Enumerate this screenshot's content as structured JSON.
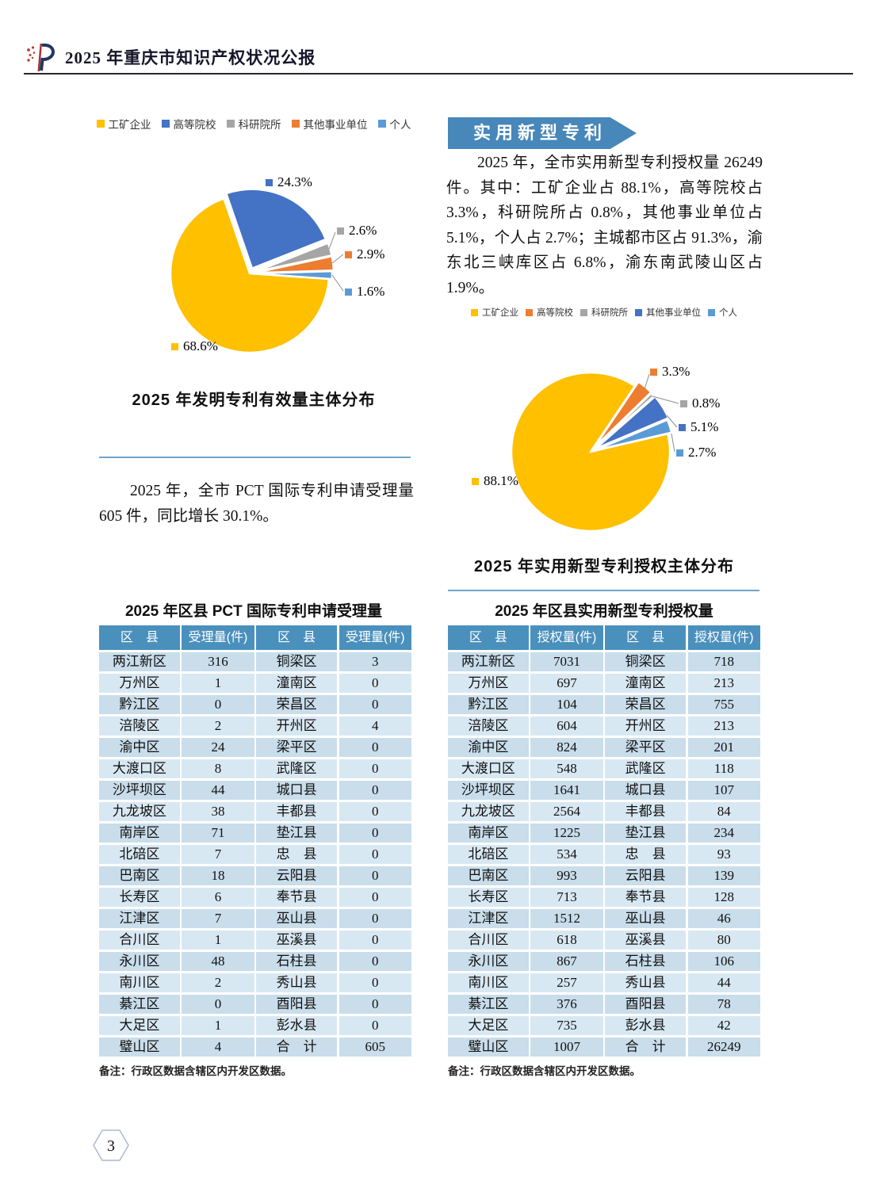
{
  "header": {
    "title": "2025 年重庆市知识产权状况公报"
  },
  "section_banner": "实用新型专利",
  "paragraphs": {
    "pct": "2025 年，全市 PCT 国际专利申请受理量 605 件，同比增长 30.1%。",
    "utility": "2025 年，全市实用新型专利授权量 26249 件。其中：工矿企业占 88.1%，高等院校占 3.3%，科研院所占 0.8%，其他事业单位占 5.1%，个人占 2.7%；主城都市区占 91.3%，渝东北三峡库区占 6.8%，渝东南武陵山区占 1.9%。"
  },
  "chart_data": [
    {
      "type": "pie",
      "title": "2025 年发明专利有效量主体分布",
      "values_are": "percent",
      "legend_position": "top",
      "legend": [
        {
          "name": "工矿企业",
          "color": "#FFC000"
        },
        {
          "name": "高等院校",
          "color": "#4472C4"
        },
        {
          "name": "科研院所",
          "color": "#A5A5A5"
        },
        {
          "name": "其他事业单位",
          "color": "#ED7D31"
        },
        {
          "name": "个人",
          "color": "#5B9BD5"
        }
      ],
      "slices": [
        {
          "name": "高等院校",
          "value": 24.3,
          "label": "24.3%",
          "color": "#4472C4"
        },
        {
          "name": "科研院所",
          "value": 2.6,
          "label": "2.6%",
          "color": "#A5A5A5"
        },
        {
          "name": "其他事业单位",
          "value": 2.9,
          "label": "2.9%",
          "color": "#ED7D31"
        },
        {
          "name": "个人",
          "value": 1.6,
          "label": "1.6%",
          "color": "#5B9BD5"
        },
        {
          "name": "工矿企业",
          "value": 68.6,
          "label": "68.6%",
          "color": "#FFC000"
        }
      ]
    },
    {
      "type": "pie",
      "title": "2025 年实用新型专利授权主体分布",
      "values_are": "percent",
      "legend_position": "top",
      "legend": [
        {
          "name": "工矿企业",
          "color": "#FFC000"
        },
        {
          "name": "高等院校",
          "color": "#ED7D31"
        },
        {
          "name": "科研院所",
          "color": "#A5A5A5"
        },
        {
          "name": "其他事业单位",
          "color": "#4472C4"
        },
        {
          "name": "个人",
          "color": "#5B9BD5"
        }
      ],
      "slices": [
        {
          "name": "高等院校",
          "value": 3.3,
          "label": "3.3%",
          "color": "#ED7D31"
        },
        {
          "name": "科研院所",
          "value": 0.8,
          "label": "0.8%",
          "color": "#A5A5A5"
        },
        {
          "name": "其他事业单位",
          "value": 5.1,
          "label": "5.1%",
          "color": "#4472C4"
        },
        {
          "name": "个人",
          "value": 2.7,
          "label": "2.7%",
          "color": "#5B9BD5"
        },
        {
          "name": "工矿企业",
          "value": 88.1,
          "label": "88.1%",
          "color": "#FFC000"
        }
      ]
    }
  ],
  "pct_table": {
    "title": "2025 年区县 PCT 国际专利申请受理量",
    "headers": [
      "区　县",
      "受理量(件)",
      "区　县",
      "受理量(件)"
    ],
    "rows": [
      [
        "两江新区",
        "316",
        "铜梁区",
        "3"
      ],
      [
        "万州区",
        "1",
        "潼南区",
        "0"
      ],
      [
        "黔江区",
        "0",
        "荣昌区",
        "0"
      ],
      [
        "涪陵区",
        "2",
        "开州区",
        "4"
      ],
      [
        "渝中区",
        "24",
        "梁平区",
        "0"
      ],
      [
        "大渡口区",
        "8",
        "武隆区",
        "0"
      ],
      [
        "沙坪坝区",
        "44",
        "城口县",
        "0"
      ],
      [
        "九龙坡区",
        "38",
        "丰都县",
        "0"
      ],
      [
        "南岸区",
        "71",
        "垫江县",
        "0"
      ],
      [
        "北碚区",
        "7",
        "忠　县",
        "0"
      ],
      [
        "巴南区",
        "18",
        "云阳县",
        "0"
      ],
      [
        "长寿区",
        "6",
        "奉节县",
        "0"
      ],
      [
        "江津区",
        "7",
        "巫山县",
        "0"
      ],
      [
        "合川区",
        "1",
        "巫溪县",
        "0"
      ],
      [
        "永川区",
        "48",
        "石柱县",
        "0"
      ],
      [
        "南川区",
        "2",
        "秀山县",
        "0"
      ],
      [
        "綦江区",
        "0",
        "酉阳县",
        "0"
      ],
      [
        "大足区",
        "1",
        "彭水县",
        "0"
      ],
      [
        "璧山区",
        "4",
        "合　计",
        "605"
      ]
    ],
    "note": "备注：行政区数据含辖区内开发区数据。"
  },
  "utility_table": {
    "title": "2025 年区县实用新型专利授权量",
    "headers": [
      "区　县",
      "授权量(件)",
      "区　县",
      "授权量(件)"
    ],
    "rows": [
      [
        "两江新区",
        "7031",
        "铜梁区",
        "718"
      ],
      [
        "万州区",
        "697",
        "潼南区",
        "213"
      ],
      [
        "黔江区",
        "104",
        "荣昌区",
        "755"
      ],
      [
        "涪陵区",
        "604",
        "开州区",
        "213"
      ],
      [
        "渝中区",
        "824",
        "梁平区",
        "201"
      ],
      [
        "大渡口区",
        "548",
        "武隆区",
        "118"
      ],
      [
        "沙坪坝区",
        "1641",
        "城口县",
        "107"
      ],
      [
        "九龙坡区",
        "2564",
        "丰都县",
        "84"
      ],
      [
        "南岸区",
        "1225",
        "垫江县",
        "234"
      ],
      [
        "北碚区",
        "534",
        "忠　县",
        "93"
      ],
      [
        "巴南区",
        "993",
        "云阳县",
        "139"
      ],
      [
        "长寿区",
        "713",
        "奉节县",
        "128"
      ],
      [
        "江津区",
        "1512",
        "巫山县",
        "46"
      ],
      [
        "合川区",
        "618",
        "巫溪县",
        "80"
      ],
      [
        "永川区",
        "867",
        "石柱县",
        "106"
      ],
      [
        "南川区",
        "257",
        "秀山县",
        "44"
      ],
      [
        "綦江区",
        "376",
        "酉阳县",
        "78"
      ],
      [
        "大足区",
        "735",
        "彭水县",
        "42"
      ],
      [
        "璧山区",
        "1007",
        "合　计",
        "26249"
      ]
    ],
    "note": "备注：行政区数据含辖区内开发区数据。"
  },
  "page_number": "3",
  "colors": {
    "banner_blue": "#4787b9",
    "table_header_blue": "#4a90bd",
    "table_row_dark": "#c9ddeb",
    "table_row_light": "#d8e8f3",
    "divider_blue": "#6fa3cc",
    "pie_yellow": "#FFC000",
    "pie_blue": "#4472C4",
    "pie_orange": "#ED7D31",
    "pie_gray": "#A5A5A5",
    "pie_light_blue": "#5B9BD5"
  }
}
